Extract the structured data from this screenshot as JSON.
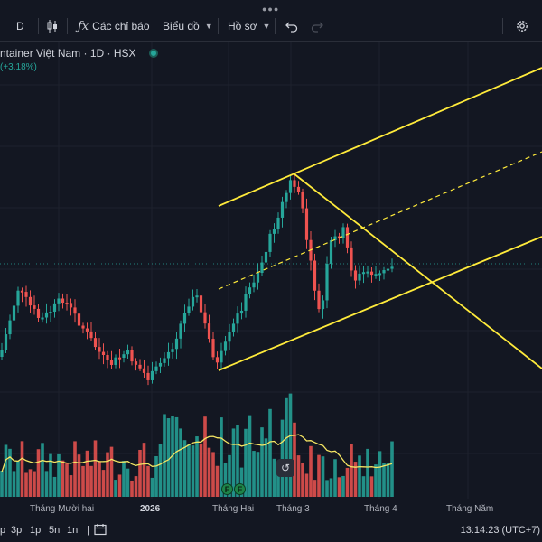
{
  "toolbar": {
    "interval": "D",
    "indicators_label": "Các chỉ báo",
    "chart_type_label": "Biểu đồ",
    "profile_label": "Hồ sơ"
  },
  "legend": {
    "symbol": "ntainer Việt Nam · 1D · HSX",
    "change": "(+3.18%)"
  },
  "chart_data": {
    "type": "candlestick",
    "x_labels": [
      "Tháng Mười hai",
      "2026",
      "Tháng Hai",
      "Tháng 3",
      "Tháng 4",
      "Tháng Năm"
    ],
    "colors": {
      "up": "#26a69a",
      "down": "#ef5350",
      "ma_line": "#f5e663",
      "drawing": "#ffeb3b"
    }
  },
  "earnings_badges": [
    "F",
    "F"
  ],
  "range_buttons": [
    "p",
    "3p",
    "1p",
    "5n",
    "1n"
  ],
  "clock": "13:14:23 (UTC+7)"
}
